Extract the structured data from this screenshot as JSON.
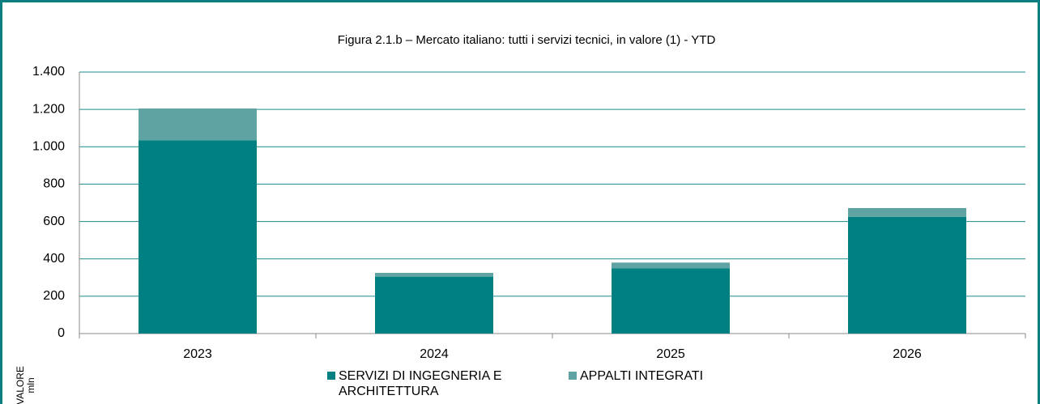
{
  "chart_data": {
    "type": "bar",
    "stacked": true,
    "title": "Figura 2.1.b – Mercato italiano: tutti i servizi tecnici, in valore (1) - YTD",
    "y_label": "VALORE mln",
    "categories": [
      "2023",
      "2024",
      "2025",
      "2026"
    ],
    "series": [
      {
        "name": "SERVIZI DI INGEGNERIA E ARCHITETTURA",
        "color": "#008080",
        "values": [
          1035,
          305,
          350,
          625
        ]
      },
      {
        "name": "APPALTI INTEGRATI",
        "color": "#5fa3a3",
        "values": [
          170,
          20,
          30,
          47
        ]
      }
    ],
    "ylim": [
      0,
      1400
    ],
    "yticks": [
      0,
      {
        "value": 200,
        "label": "200"
      },
      400,
      600,
      800,
      {
        "value": 1000,
        "label": "1.000"
      },
      {
        "value": 1200,
        "label": "1.200"
      },
      {
        "value": 1400,
        "label": "1.400"
      }
    ],
    "grid": true,
    "legend": "bottom"
  }
}
